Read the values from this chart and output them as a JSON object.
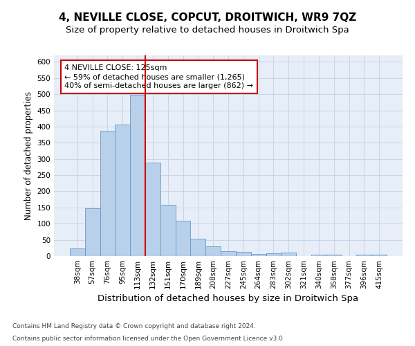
{
  "title": "4, NEVILLE CLOSE, COPCUT, DROITWICH, WR9 7QZ",
  "subtitle": "Size of property relative to detached houses in Droitwich Spa",
  "xlabel": "Distribution of detached houses by size in Droitwich Spa",
  "ylabel": "Number of detached properties",
  "footnote1": "Contains HM Land Registry data © Crown copyright and database right 2024.",
  "footnote2": "Contains public sector information licensed under the Open Government Licence v3.0.",
  "annotation_line1": "4 NEVILLE CLOSE: 125sqm",
  "annotation_line2": "← 59% of detached houses are smaller (1,265)",
  "annotation_line3": "40% of semi-detached houses are larger (862) →",
  "bar_labels": [
    "38sqm",
    "57sqm",
    "76sqm",
    "95sqm",
    "113sqm",
    "132sqm",
    "151sqm",
    "170sqm",
    "189sqm",
    "208sqm",
    "227sqm",
    "245sqm",
    "264sqm",
    "283sqm",
    "302sqm",
    "321sqm",
    "340sqm",
    "358sqm",
    "377sqm",
    "396sqm",
    "415sqm"
  ],
  "bar_values": [
    23,
    148,
    388,
    407,
    499,
    289,
    159,
    108,
    53,
    30,
    16,
    12,
    6,
    8,
    10,
    0,
    4,
    4,
    0,
    5,
    4
  ],
  "bar_color": "#b8d0ea",
  "bar_edge_color": "#6699cc",
  "red_line_x": 4.5,
  "ylim": [
    0,
    620
  ],
  "yticks": [
    0,
    50,
    100,
    150,
    200,
    250,
    300,
    350,
    400,
    450,
    500,
    550,
    600
  ],
  "grid_color": "#c8d4e8",
  "background_color": "#e8eef8",
  "annotation_box_facecolor": "#ffffff",
  "annotation_box_edgecolor": "#cc0000",
  "red_line_color": "#cc0000",
  "title_fontsize": 11,
  "subtitle_fontsize": 9.5,
  "xlabel_fontsize": 9.5,
  "ylabel_fontsize": 8.5,
  "tick_fontsize": 7.5,
  "annotation_fontsize": 8,
  "footnote_fontsize": 6.5
}
